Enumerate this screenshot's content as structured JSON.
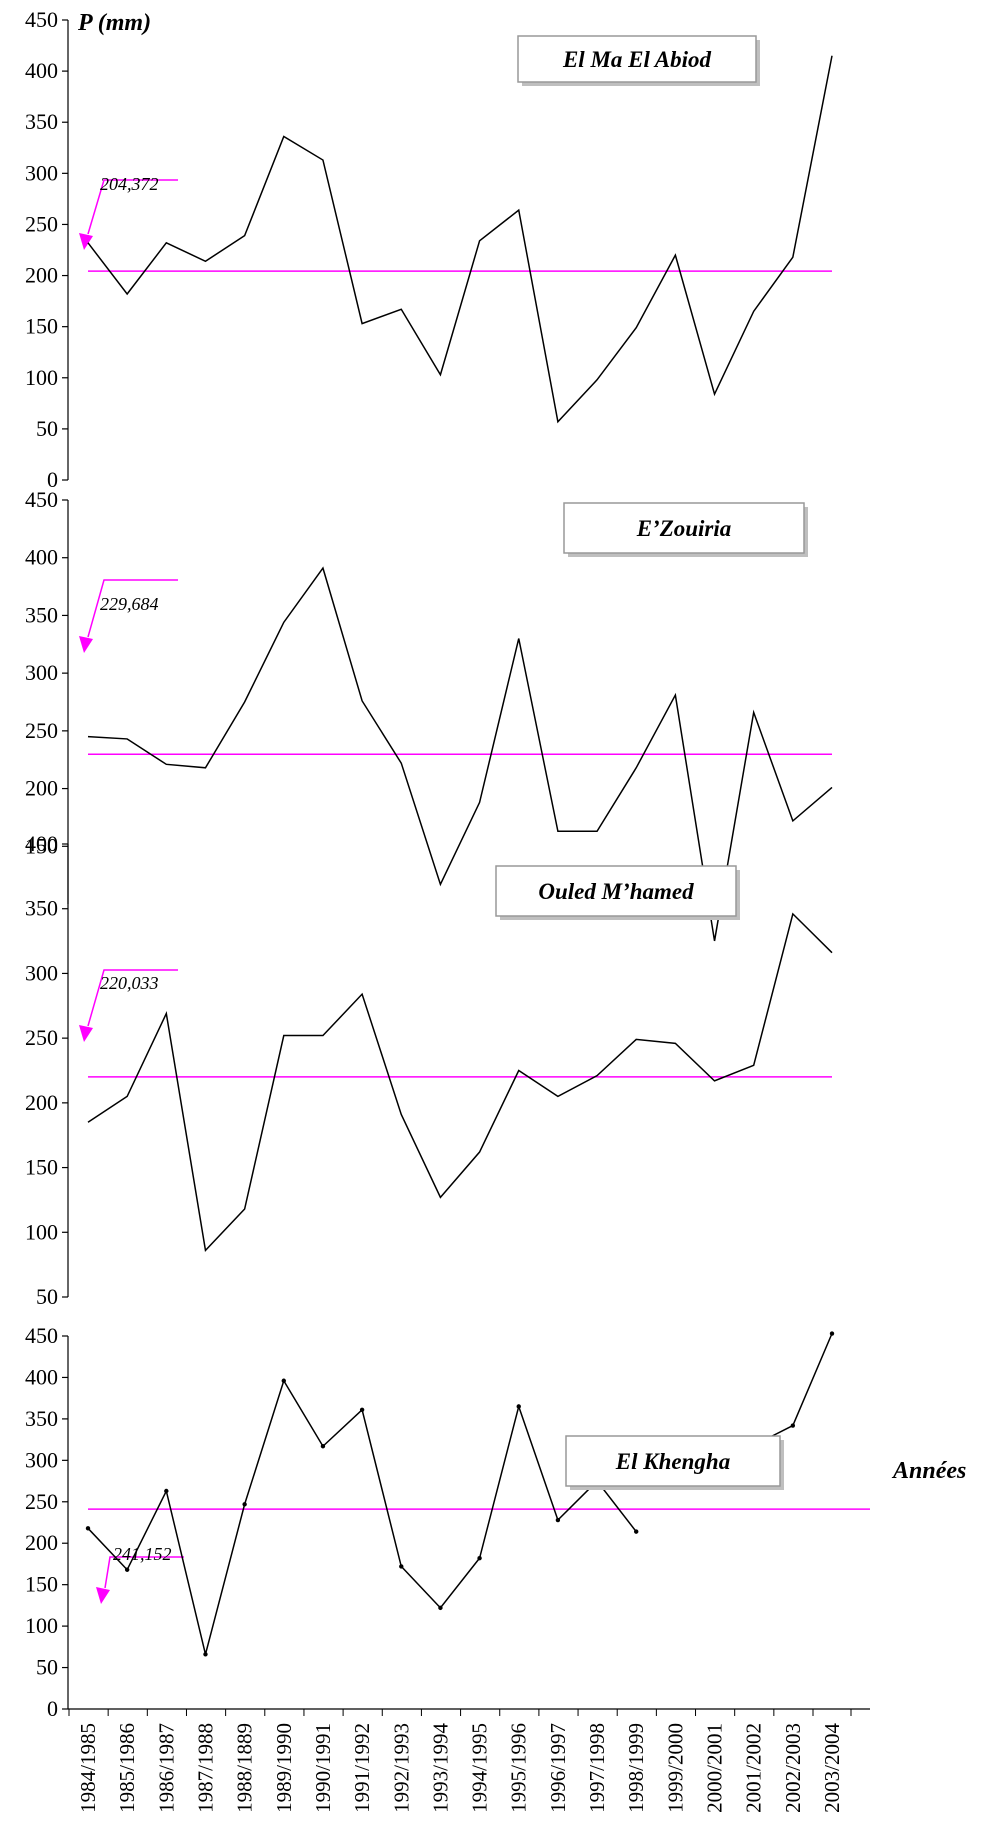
{
  "colors": {
    "series": "#000000",
    "mean": "#ff00ff",
    "box_border": "#999999"
  },
  "y_axis_title": "P (mm)",
  "x_axis_title": "Années",
  "x_categories": [
    "1984/1985",
    "1985/1986",
    "1986/1987",
    "1987/1988",
    "1988/1889",
    "1989/1990",
    "1990/1991",
    "1991/1992",
    "1992/1993",
    "1993/1994",
    "1994/1995",
    "1995/1996",
    "1996/1997",
    "1997/1998",
    "1998/1999",
    "1999/2000",
    "2000/2001",
    "2001/2002",
    "2002/2003",
    "2003/2004"
  ],
  "chart_data": [
    {
      "type": "line",
      "title": "El Ma El Abiod",
      "ylabel": "P (mm)",
      "ylim": [
        0,
        450
      ],
      "yticks": [
        0,
        50,
        100,
        150,
        200,
        250,
        300,
        350,
        400,
        450
      ],
      "mean": 204.372,
      "mean_label": "204,372",
      "markers": false,
      "series": [
        {
          "values": [
            232,
            182,
            232,
            214,
            239,
            336,
            313,
            153,
            167,
            103,
            234,
            264,
            57,
            98,
            149,
            220,
            84,
            165,
            218,
            415
          ]
        }
      ]
    },
    {
      "type": "line",
      "title": "E’Zouiria",
      "ylabel": "",
      "ylim": [
        100,
        450
      ],
      "yticks": [
        150,
        200,
        250,
        300,
        350,
        400,
        450
      ],
      "mean": 229.684,
      "mean_label": "229,684",
      "markers": false,
      "series": [
        {
          "values": [
            245,
            243,
            221,
            218,
            275,
            344,
            391,
            276,
            222,
            117,
            188,
            330,
            163,
            163,
            218,
            281,
            68,
            266,
            172,
            201
          ]
        }
      ]
    },
    {
      "type": "line",
      "title": "Ouled M’hamed",
      "ylabel": "",
      "ylim": [
        50,
        400
      ],
      "yticks": [
        50,
        100,
        150,
        200,
        250,
        300,
        350,
        400
      ],
      "mean": 220.033,
      "mean_label": "220,033",
      "markers": false,
      "series": [
        {
          "values": [
            185,
            205,
            269,
            86,
            118,
            252,
            252,
            284,
            191,
            127,
            162,
            225,
            205,
            221,
            249,
            246,
            217,
            229,
            346,
            316
          ]
        }
      ]
    },
    {
      "type": "line",
      "title": "El Khengha",
      "xlabel": "Années",
      "ylabel": "",
      "ylim": [
        0,
        450
      ],
      "yticks": [
        0,
        50,
        100,
        150,
        200,
        250,
        300,
        350,
        400,
        450
      ],
      "mean": 241.152,
      "mean_label": "241,152",
      "markers": true,
      "series": [
        {
          "values": [
            218,
            168,
            263,
            66,
            247,
            396,
            317,
            361,
            172,
            122,
            182,
            365,
            228,
            275,
            214,
            null,
            null,
            318,
            342,
            453
          ]
        }
      ]
    }
  ]
}
